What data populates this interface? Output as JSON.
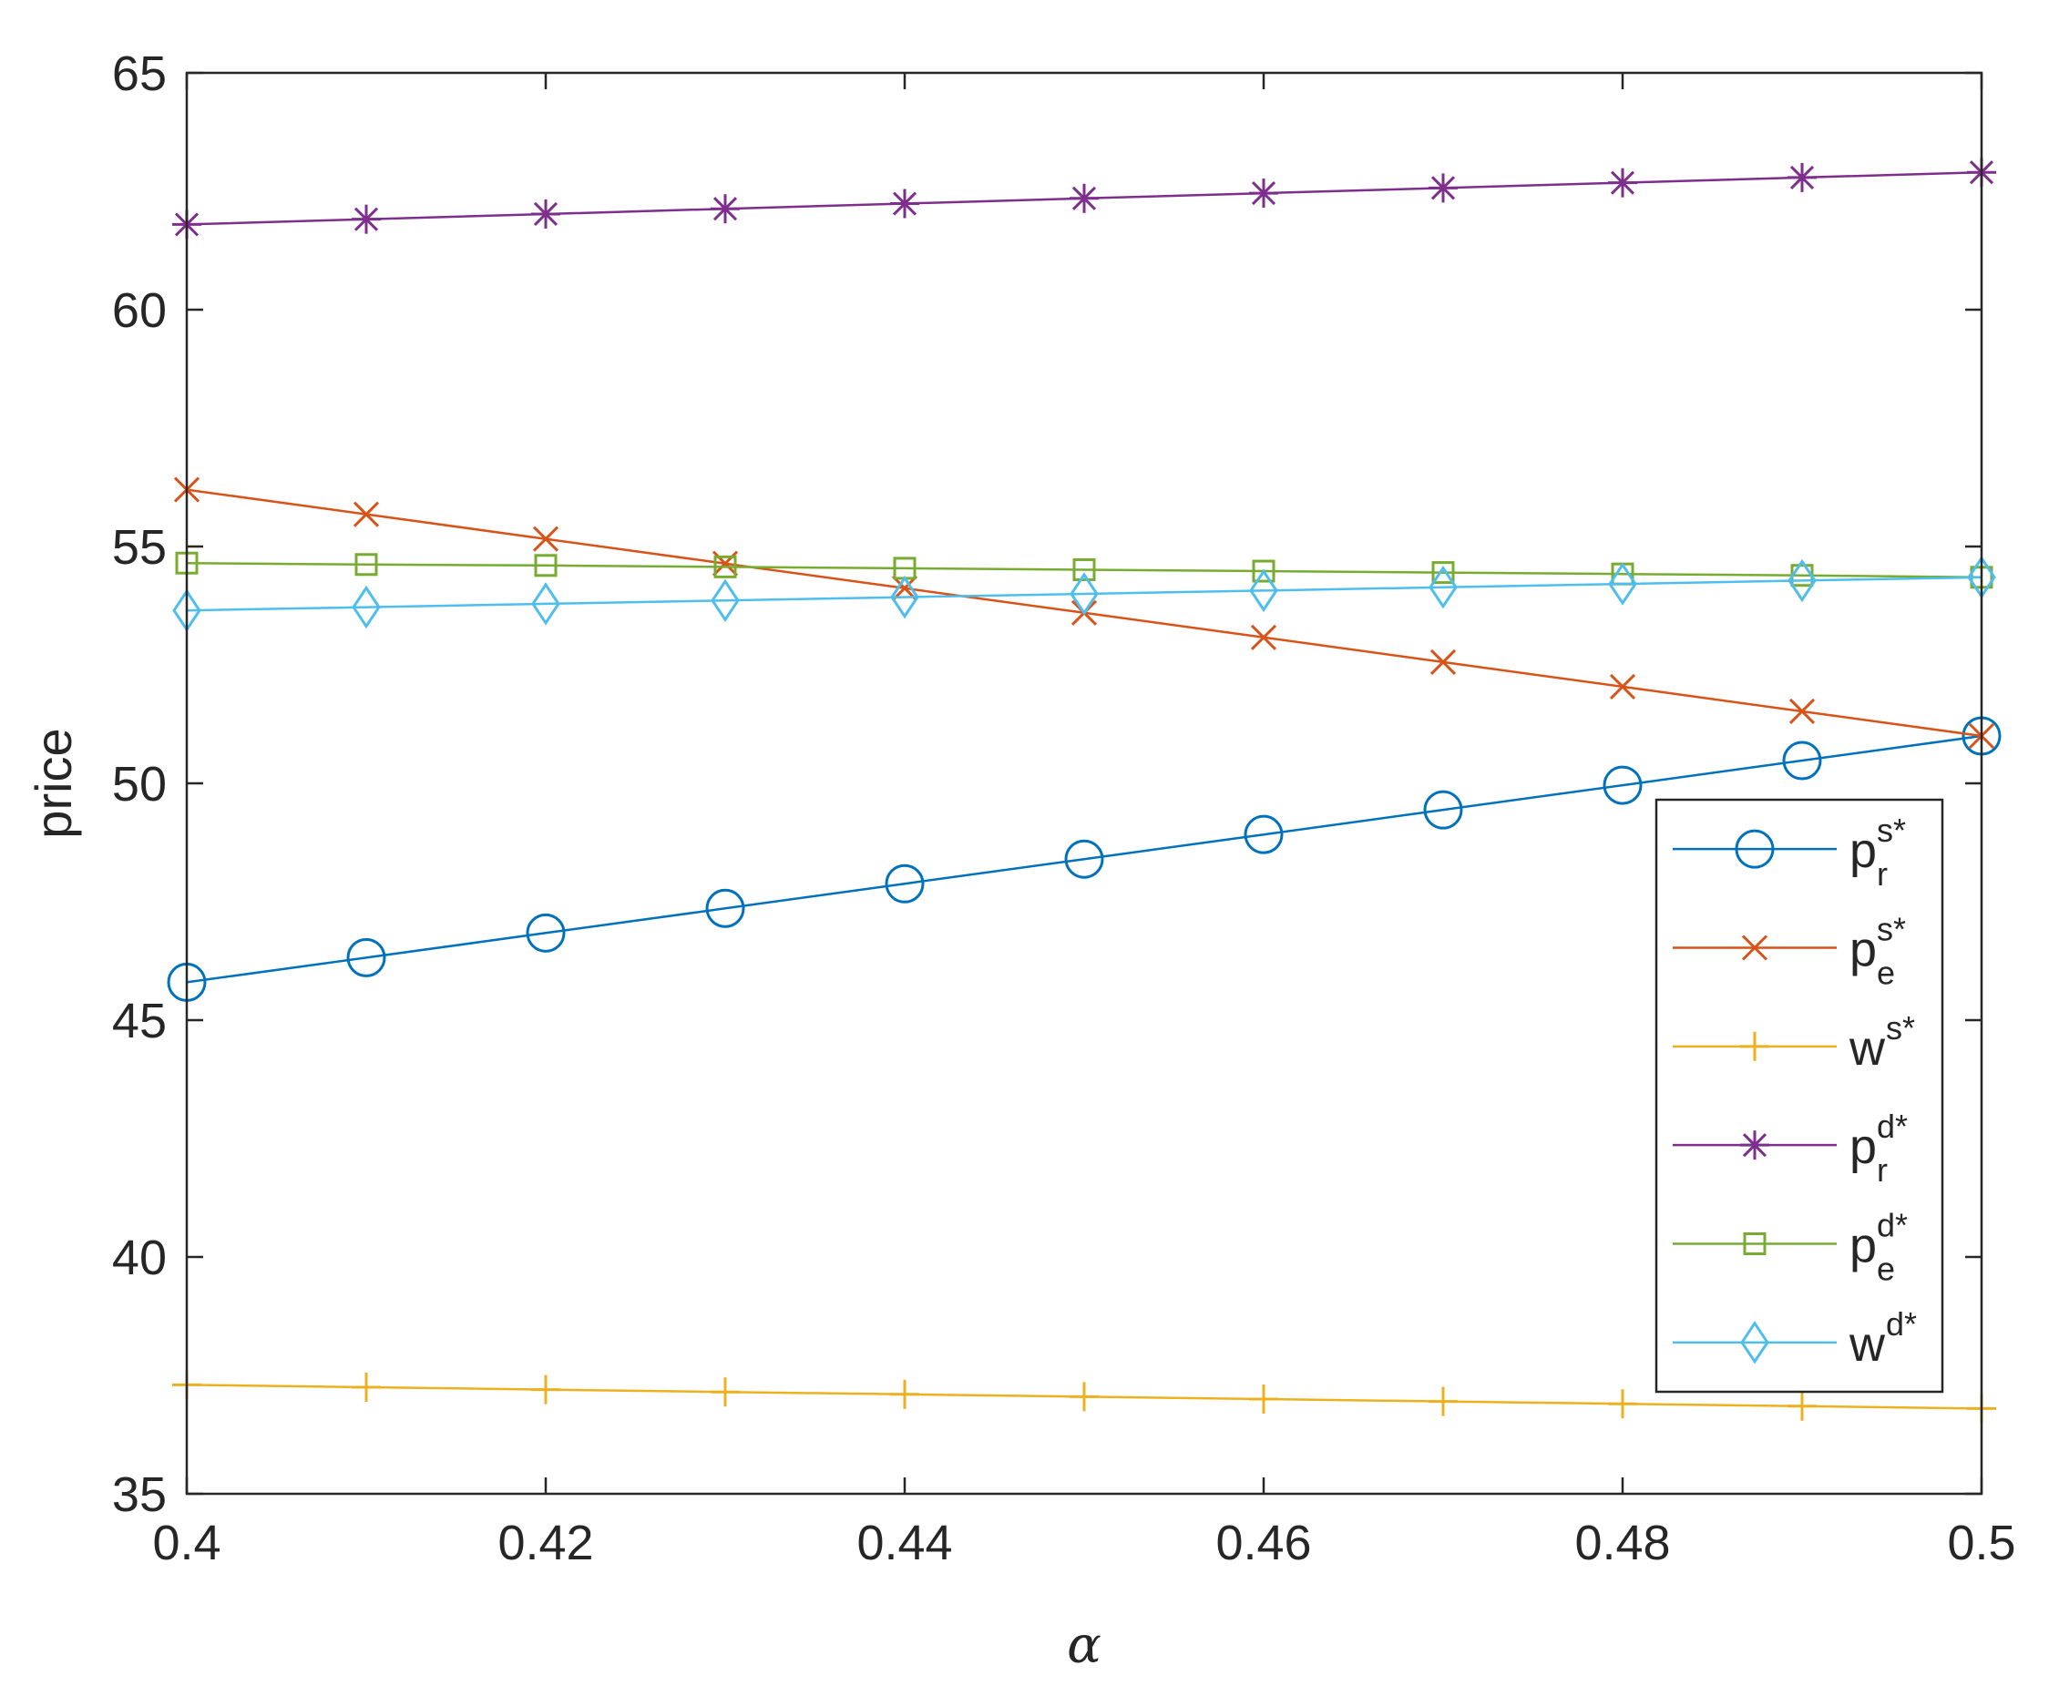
{
  "chart_data": {
    "type": "line",
    "xlabel": "α",
    "ylabel": "price",
    "xlim": [
      0.4,
      0.5
    ],
    "ylim": [
      35,
      65
    ],
    "xticks": [
      "0.4",
      "0.42",
      "0.44",
      "0.46",
      "0.48",
      "0.5"
    ],
    "yticks": [
      "35",
      "40",
      "45",
      "50",
      "55",
      "60",
      "65"
    ],
    "grid": false,
    "legend_position": "lower-right",
    "x": [
      0.4,
      0.41,
      0.42,
      0.43,
      0.44,
      0.45,
      0.46,
      0.47,
      0.48,
      0.49,
      0.5
    ],
    "series": [
      {
        "name": "p_r^{s*}",
        "base": "p",
        "sub": "r",
        "sup": "s*",
        "marker": "circle",
        "color": "#0072BD",
        "values": [
          45.8,
          46.32,
          46.84,
          47.36,
          47.88,
          48.4,
          48.92,
          49.44,
          49.96,
          50.48,
          51.0
        ]
      },
      {
        "name": "p_e^{s*}",
        "base": "p",
        "sub": "e",
        "sup": "s*",
        "marker": "x",
        "color": "#D95319",
        "values": [
          56.2,
          55.68,
          55.16,
          54.64,
          54.12,
          53.6,
          53.08,
          52.56,
          52.04,
          51.52,
          51.0
        ]
      },
      {
        "name": "w^{s*}",
        "base": "w",
        "sub": "",
        "sup": "s*",
        "marker": "plus",
        "color": "#EDB120",
        "values": [
          37.3,
          37.25,
          37.2,
          37.15,
          37.1,
          37.05,
          37.0,
          36.95,
          36.9,
          36.85,
          36.8
        ]
      },
      {
        "name": "p_r^{d*}",
        "base": "p",
        "sub": "r",
        "sup": "d*",
        "marker": "star",
        "color": "#7E2F8E",
        "values": [
          61.8,
          61.91,
          62.02,
          62.13,
          62.24,
          62.35,
          62.46,
          62.57,
          62.68,
          62.79,
          62.9
        ]
      },
      {
        "name": "p_e^{d*}",
        "base": "p",
        "sub": "e",
        "sup": "d*",
        "marker": "square",
        "color": "#77AC30",
        "values": [
          54.65,
          54.62,
          54.6,
          54.57,
          54.54,
          54.51,
          54.48,
          54.45,
          54.42,
          54.39,
          54.35
        ]
      },
      {
        "name": "w^{d*}",
        "base": "w",
        "sub": "",
        "sup": "d*",
        "marker": "diamond",
        "color": "#4DBEEE",
        "values": [
          53.65,
          53.72,
          53.79,
          53.86,
          53.93,
          54.0,
          54.07,
          54.14,
          54.21,
          54.28,
          54.35
        ]
      }
    ]
  }
}
